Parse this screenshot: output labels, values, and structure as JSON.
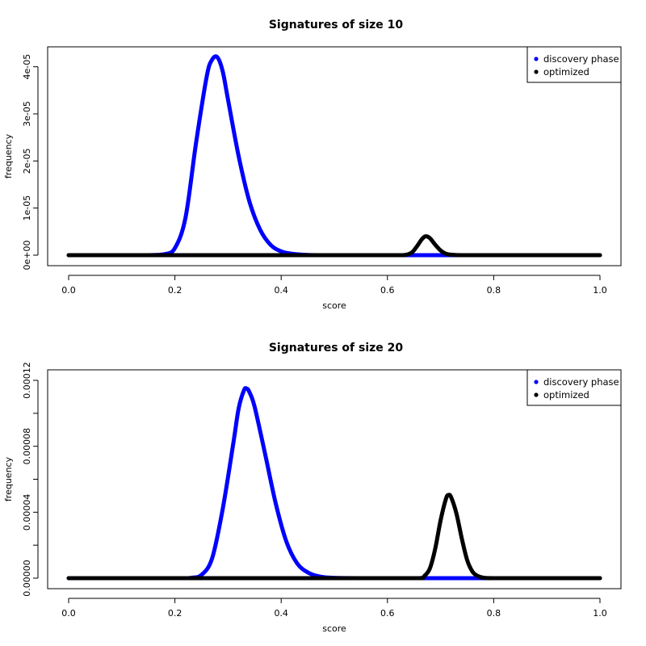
{
  "chart_data": [
    {
      "type": "line",
      "title": "Signatures of size 10",
      "xlabel": "score",
      "ylabel": "frequency",
      "xlim": [
        0,
        1
      ],
      "ylim": [
        0,
        4.2e-05
      ],
      "x_ticks": [
        0.0,
        0.2,
        0.4,
        0.6,
        0.8,
        1.0
      ],
      "x_tick_labels": [
        "0.0",
        "0.2",
        "0.4",
        "0.6",
        "0.8",
        "1.0"
      ],
      "y_ticks": [
        0,
        1e-05,
        2e-05,
        3e-05,
        4e-05
      ],
      "y_tick_labels": [
        "0e+00",
        "1e-05",
        "2e-05",
        "3e-05",
        "4e-05"
      ],
      "legend": {
        "position": "top-right",
        "entries": [
          "discovery phase",
          "optimized"
        ]
      },
      "grid": false,
      "series": [
        {
          "name": "discovery phase",
          "color": "#0000ff",
          "x": [
            0.0,
            0.1,
            0.15,
            0.18,
            0.2,
            0.22,
            0.24,
            0.26,
            0.27,
            0.28,
            0.29,
            0.3,
            0.32,
            0.34,
            0.36,
            0.38,
            0.4,
            0.42,
            0.45,
            0.5,
            0.6,
            0.7,
            0.8,
            0.9,
            1.0
          ],
          "values": [
            0,
            0,
            0,
            2e-07,
            1.5e-06,
            8e-06,
            2.4e-05,
            3.8e-05,
            4.15e-05,
            4.2e-05,
            3.9e-05,
            3.3e-05,
            2.1e-05,
            1.15e-05,
            5.5e-06,
            2.2e-06,
            8e-07,
            3e-07,
            5e-08,
            0,
            0,
            0,
            0,
            0,
            0
          ]
        },
        {
          "name": "optimized",
          "color": "#000000",
          "x": [
            0.0,
            0.5,
            0.6,
            0.63,
            0.645,
            0.655,
            0.665,
            0.672,
            0.68,
            0.69,
            0.7,
            0.71,
            0.72,
            0.74,
            0.8,
            0.9,
            1.0
          ],
          "values": [
            0,
            0,
            0,
            0,
            5e-07,
            1.8e-06,
            3.4e-06,
            4e-06,
            3.6e-06,
            2.2e-06,
            1e-06,
            3e-07,
            1e-07,
            0,
            0,
            0,
            0
          ]
        }
      ]
    },
    {
      "type": "line",
      "title": "Signatures of size 20",
      "xlabel": "score",
      "ylabel": "frequency",
      "xlim": [
        0,
        1
      ],
      "ylim": [
        0,
        0.00012
      ],
      "x_ticks": [
        0.0,
        0.2,
        0.4,
        0.6,
        0.8,
        1.0
      ],
      "x_tick_labels": [
        "0.0",
        "0.2",
        "0.4",
        "0.6",
        "0.8",
        "1.0"
      ],
      "y_ticks": [
        0,
        4e-05,
        8e-05,
        0.00012
      ],
      "y_tick_labels": [
        "0.00000",
        "0.00004",
        "0.00008",
        "0.00012"
      ],
      "y_minor_ticks": [
        2e-05,
        6e-05,
        0.0001
      ],
      "legend": {
        "position": "top-right",
        "entries": [
          "discovery phase",
          "optimized"
        ]
      },
      "grid": false,
      "series": [
        {
          "name": "discovery phase",
          "color": "#0000ff",
          "x": [
            0.0,
            0.2,
            0.23,
            0.25,
            0.27,
            0.29,
            0.31,
            0.32,
            0.33,
            0.335,
            0.34,
            0.35,
            0.37,
            0.39,
            0.41,
            0.43,
            0.45,
            0.47,
            0.5,
            0.6,
            0.7,
            0.8,
            0.9,
            1.0
          ],
          "values": [
            0,
            0,
            2e-07,
            2e-06,
            1.2e-05,
            4.2e-05,
            8.2e-05,
            0.000103,
            0.000114,
            0.000115,
            0.000113,
            0.000104,
            7.5e-05,
            4.5e-05,
            2.2e-05,
            9e-06,
            3.5e-06,
            1.2e-06,
            2e-07,
            0,
            0,
            0,
            0,
            0
          ]
        },
        {
          "name": "optimized",
          "color": "#000000",
          "x": [
            0.0,
            0.6,
            0.66,
            0.67,
            0.68,
            0.69,
            0.7,
            0.71,
            0.715,
            0.72,
            0.73,
            0.74,
            0.75,
            0.76,
            0.77,
            0.78,
            0.8,
            0.9,
            1.0
          ],
          "values": [
            0,
            0,
            0,
            1.5e-06,
            6e-06,
            1.8e-05,
            3.5e-05,
            4.8e-05,
            5.05e-05,
            4.9e-05,
            3.9e-05,
            2.4e-05,
            1.1e-05,
            4e-06,
            1.3e-06,
            3e-07,
            0,
            0,
            0
          ]
        }
      ]
    }
  ]
}
